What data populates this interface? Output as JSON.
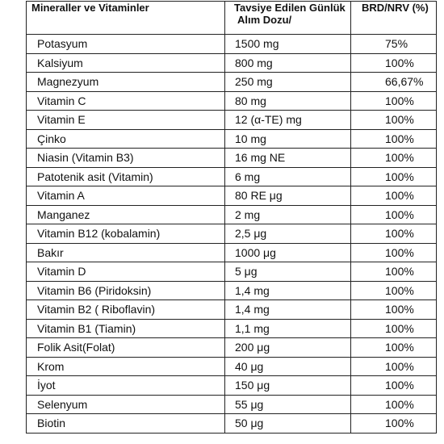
{
  "table": {
    "headers": {
      "name": "Mineraller ve Vitaminler",
      "dose_line1": "Tavsiye Edilen Günlük",
      "dose_line2": "Alım Dozu/",
      "nrv": "BRD/NRV (%)"
    },
    "rows": [
      {
        "name": "Potasyum",
        "dose": "1500 mg",
        "nrv": "75%"
      },
      {
        "name": "Kalsiyum",
        "dose": "800 mg",
        "nrv": "100%"
      },
      {
        "name": "Magnezyum",
        "dose": "250 mg",
        "nrv": "66,67%"
      },
      {
        "name": "Vitamin C",
        "dose": "80 mg",
        "nrv": "100%"
      },
      {
        "name": "Vitamin E",
        "dose": "12 (α-TE) mg",
        "nrv": "100%"
      },
      {
        "name": "Çinko",
        "dose": "10 mg",
        "nrv": "100%"
      },
      {
        "name": "Niasin (Vitamin B3)",
        "dose": "16 mg NE",
        "nrv": "100%"
      },
      {
        "name": "Patotenik asit (Vitamin)",
        "dose": "6 mg",
        "nrv": "100%"
      },
      {
        "name": "Vitamin A",
        "dose": "80 RE μg",
        "nrv": "100%"
      },
      {
        "name": "Manganez",
        "dose": "2 mg",
        "nrv": "100%"
      },
      {
        "name": "Vitamin B12 (kobalamin)",
        "dose": "2,5 μg",
        "nrv": "100%"
      },
      {
        "name": "Bakır",
        "dose": "1000 μg",
        "nrv": "100%"
      },
      {
        "name": "Vitamin D",
        "dose": "5 μg",
        "nrv": "100%"
      },
      {
        "name": "Vitamin B6 (Piridoksin)",
        "dose": "1,4 mg",
        "nrv": "100%"
      },
      {
        "name": "Vitamin B2 ( Riboflavin)",
        "dose": "1,4 mg",
        "nrv": "100%"
      },
      {
        "name": "Vitamin B1 (Tiamin)",
        "dose": "1,1 mg",
        "nrv": "100%"
      },
      {
        "name": "Folik Asit(Folat)",
        "dose": "200 μg",
        "nrv": "100%"
      },
      {
        "name": "Krom",
        "dose": "40 μg",
        "nrv": "100%"
      },
      {
        "name": "İyot",
        "dose": "150 μg",
        "nrv": "100%"
      },
      {
        "name": "Selenyum",
        "dose": "55 μg",
        "nrv": "100%"
      },
      {
        "name": "Biotin",
        "dose": "50 μg",
        "nrv": "100%"
      }
    ]
  }
}
